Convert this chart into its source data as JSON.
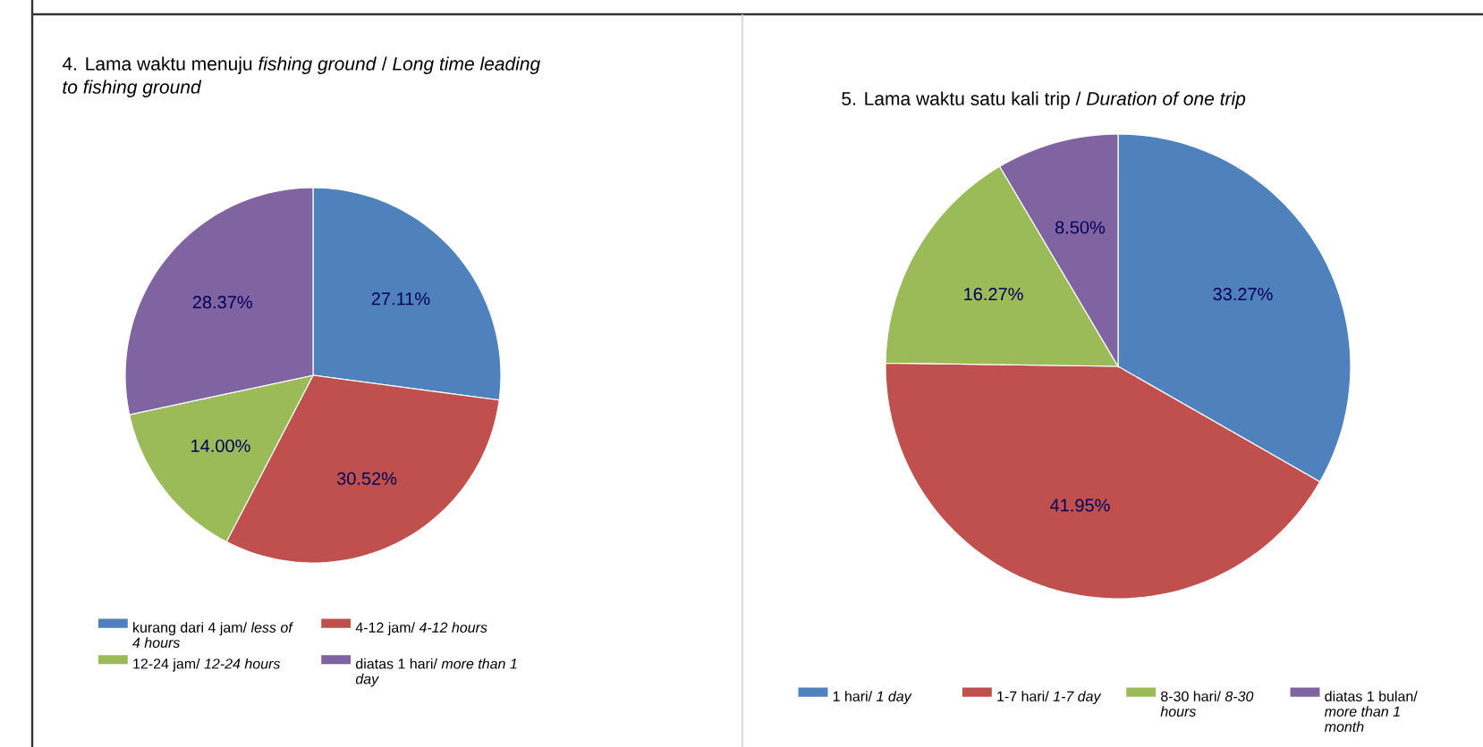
{
  "chart_data": [
    {
      "type": "pie",
      "title": "4. Lama waktu menuju *fishing ground* / *Long time leading to fishing ground*",
      "categories": [
        "kurang dari 4 jam/ *less of 4 hours*",
        "4-12 jam/ *4-12 hours*",
        "12-24 jam/ *12-24 hours*",
        "diatas 1 hari/ *more than 1 day*"
      ],
      "values": [
        27.11,
        30.52,
        14.0,
        28.37
      ],
      "colors": [
        "#4f81bd",
        "#c0504d",
        "#9bbb59",
        "#8064a2"
      ],
      "value_labels": [
        "27.11%",
        "30.52%",
        "14.00%",
        "28.37%"
      ],
      "legend": "bottom"
    },
    {
      "type": "pie",
      "title": "5. Lama waktu satu kali trip / *Duration of one trip*",
      "categories": [
        "1 hari/ *1 day*",
        "1-7 hari/ *1-7 day*",
        "8-30 hari/ *8-30 hours*",
        "diatas 1 bulan/ *more than 1 month*"
      ],
      "values": [
        33.27,
        41.95,
        16.27,
        8.5
      ],
      "colors": [
        "#4f81bd",
        "#c0504d",
        "#9bbb59",
        "#8064a2"
      ],
      "value_labels": [
        "33.27%",
        "41.95%",
        "16.27%",
        "8.50%"
      ],
      "legend": "bottom"
    }
  ]
}
